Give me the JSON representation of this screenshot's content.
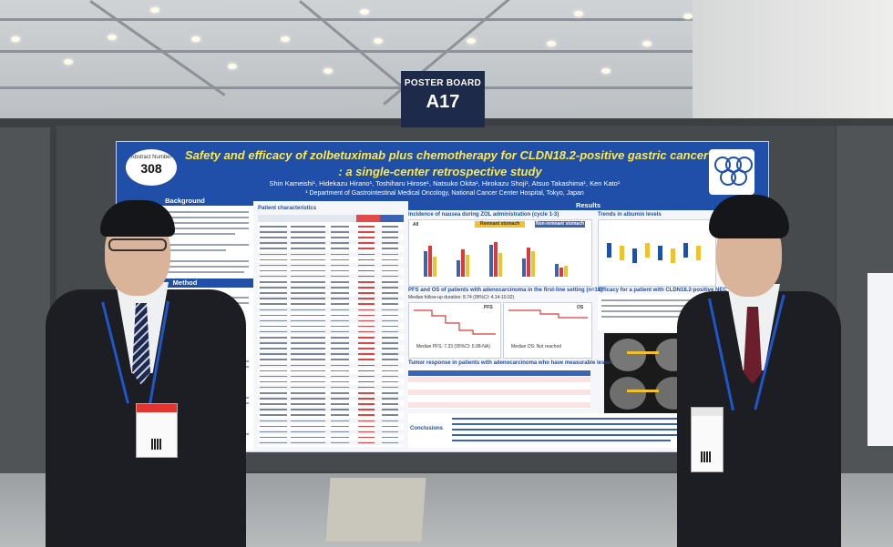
{
  "board_sign": {
    "label": "POSTER BOARD",
    "number": "A17"
  },
  "poster": {
    "abstract_label": "Abstract Number",
    "abstract_number": "308",
    "title_line1": "Safety and efficacy of zolbetuximab plus chemotherapy for CLDN18.2-positive gastric cancer",
    "title_line2": ": a single-center retrospective study",
    "authors": "Shin Kameishi¹, Hidekazu Hirano¹, Toshiharu Hirose¹, Natsuko Okita¹, Hirokazu Shoji¹, Atsuo Takashima¹, Ken Kato¹",
    "department": "¹ Department of Gastrointestinal Medical Oncology, National Cancer Center Hospital, Tokyo, Japan",
    "sections": {
      "background": "Background",
      "method": "Method",
      "results": "Results",
      "patient_characteristics": "Patient characteristics",
      "incidence_nausea": "Incidence of nausea during ZOL administration (cycle 1-3)",
      "trends_albumin": "Trends in albumin levels",
      "pfs_os": "PFS and OS of patients with adenocarcinoma in the first-line setting (n=19)",
      "efficacy_nec": "Efficacy for a patient with CLDN18.2-positive NEC",
      "tumor_response": "Tumor response in patients with adenocarcinoma who have measurable lesion",
      "conclusions": "Conclusions"
    },
    "chart_labels": {
      "all": "All",
      "remnant_stomach": "Remnant stomach",
      "non_remnant_stomach": "Non-remnant stomach",
      "pfs_title": "PFS",
      "os_title": "OS",
      "median_pfs": "Median PFS: 7.33 (95%CI: 5.98-NA)",
      "median_os": "Median OS: Not reached",
      "follow_up": "Median follow-up duration: 8.74 (95%CI: 4.14-10.02)"
    },
    "accent_color": "#1f4fa8",
    "title_color": "#ffe94a"
  }
}
